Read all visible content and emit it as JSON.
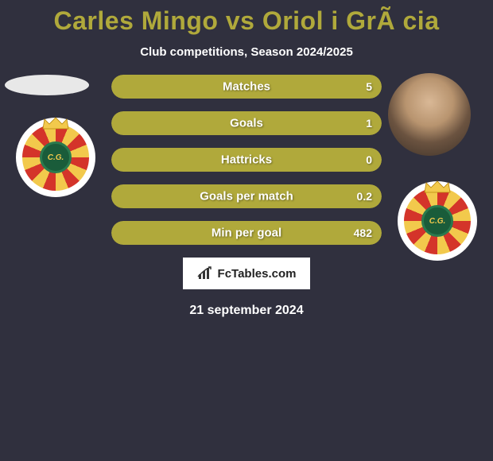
{
  "title_player1": "Carles Mingo",
  "title_vs": "vs",
  "title_player2": "Oriol i GrÃ cia",
  "title_color": "#b0a93b",
  "subtitle": "Club competitions, Season 2024/2025",
  "bar_color": "#b0a93b",
  "bar_empty_color": "#555562",
  "bars": [
    {
      "label": "Matches",
      "left": "",
      "right": "5",
      "left_pct": 0,
      "right_pct": 100
    },
    {
      "label": "Goals",
      "left": "",
      "right": "1",
      "left_pct": 0,
      "right_pct": 100
    },
    {
      "label": "Hattricks",
      "left": "",
      "right": "0",
      "left_pct": 0,
      "right_pct": 100
    },
    {
      "label": "Goals per match",
      "left": "",
      "right": "0.2",
      "left_pct": 0,
      "right_pct": 100
    },
    {
      "label": "Min per goal",
      "left": "",
      "right": "482",
      "left_pct": 0,
      "right_pct": 100
    }
  ],
  "brand_text": "FcTables.com",
  "date_text": "21 september 2024",
  "background_color": "#30303e",
  "text_color": "#ffffff"
}
